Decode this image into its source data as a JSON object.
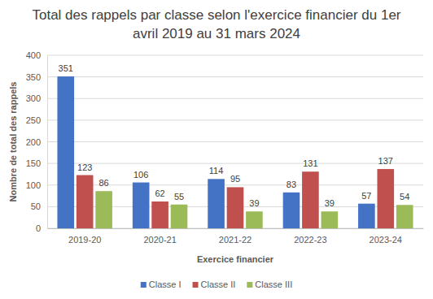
{
  "chart_data": {
    "type": "bar",
    "title": "Total des rappels par classe selon l'exercice financier du 1er avril 2019 au 31 mars 2024",
    "x_label": "Exercice financier",
    "y_label": "Nombre de total des rappels",
    "categories": [
      "2019-20",
      "2020-21",
      "2021-22",
      "2022-23",
      "2023-24"
    ],
    "series": [
      {
        "name": "Classe I",
        "color": "#4472c4",
        "values": [
          351,
          106,
          114,
          83,
          57
        ]
      },
      {
        "name": "Classe II",
        "color": "#c0504d",
        "values": [
          123,
          62,
          95,
          131,
          137
        ]
      },
      {
        "name": "Classe III",
        "color": "#9bbb59",
        "values": [
          86,
          55,
          39,
          39,
          54
        ]
      }
    ],
    "ylim": [
      0,
      400
    ],
    "yticks": [
      0,
      50,
      100,
      150,
      200,
      250,
      300,
      350,
      400
    ],
    "grid": true,
    "legend": "bottom",
    "data_labels": true
  }
}
